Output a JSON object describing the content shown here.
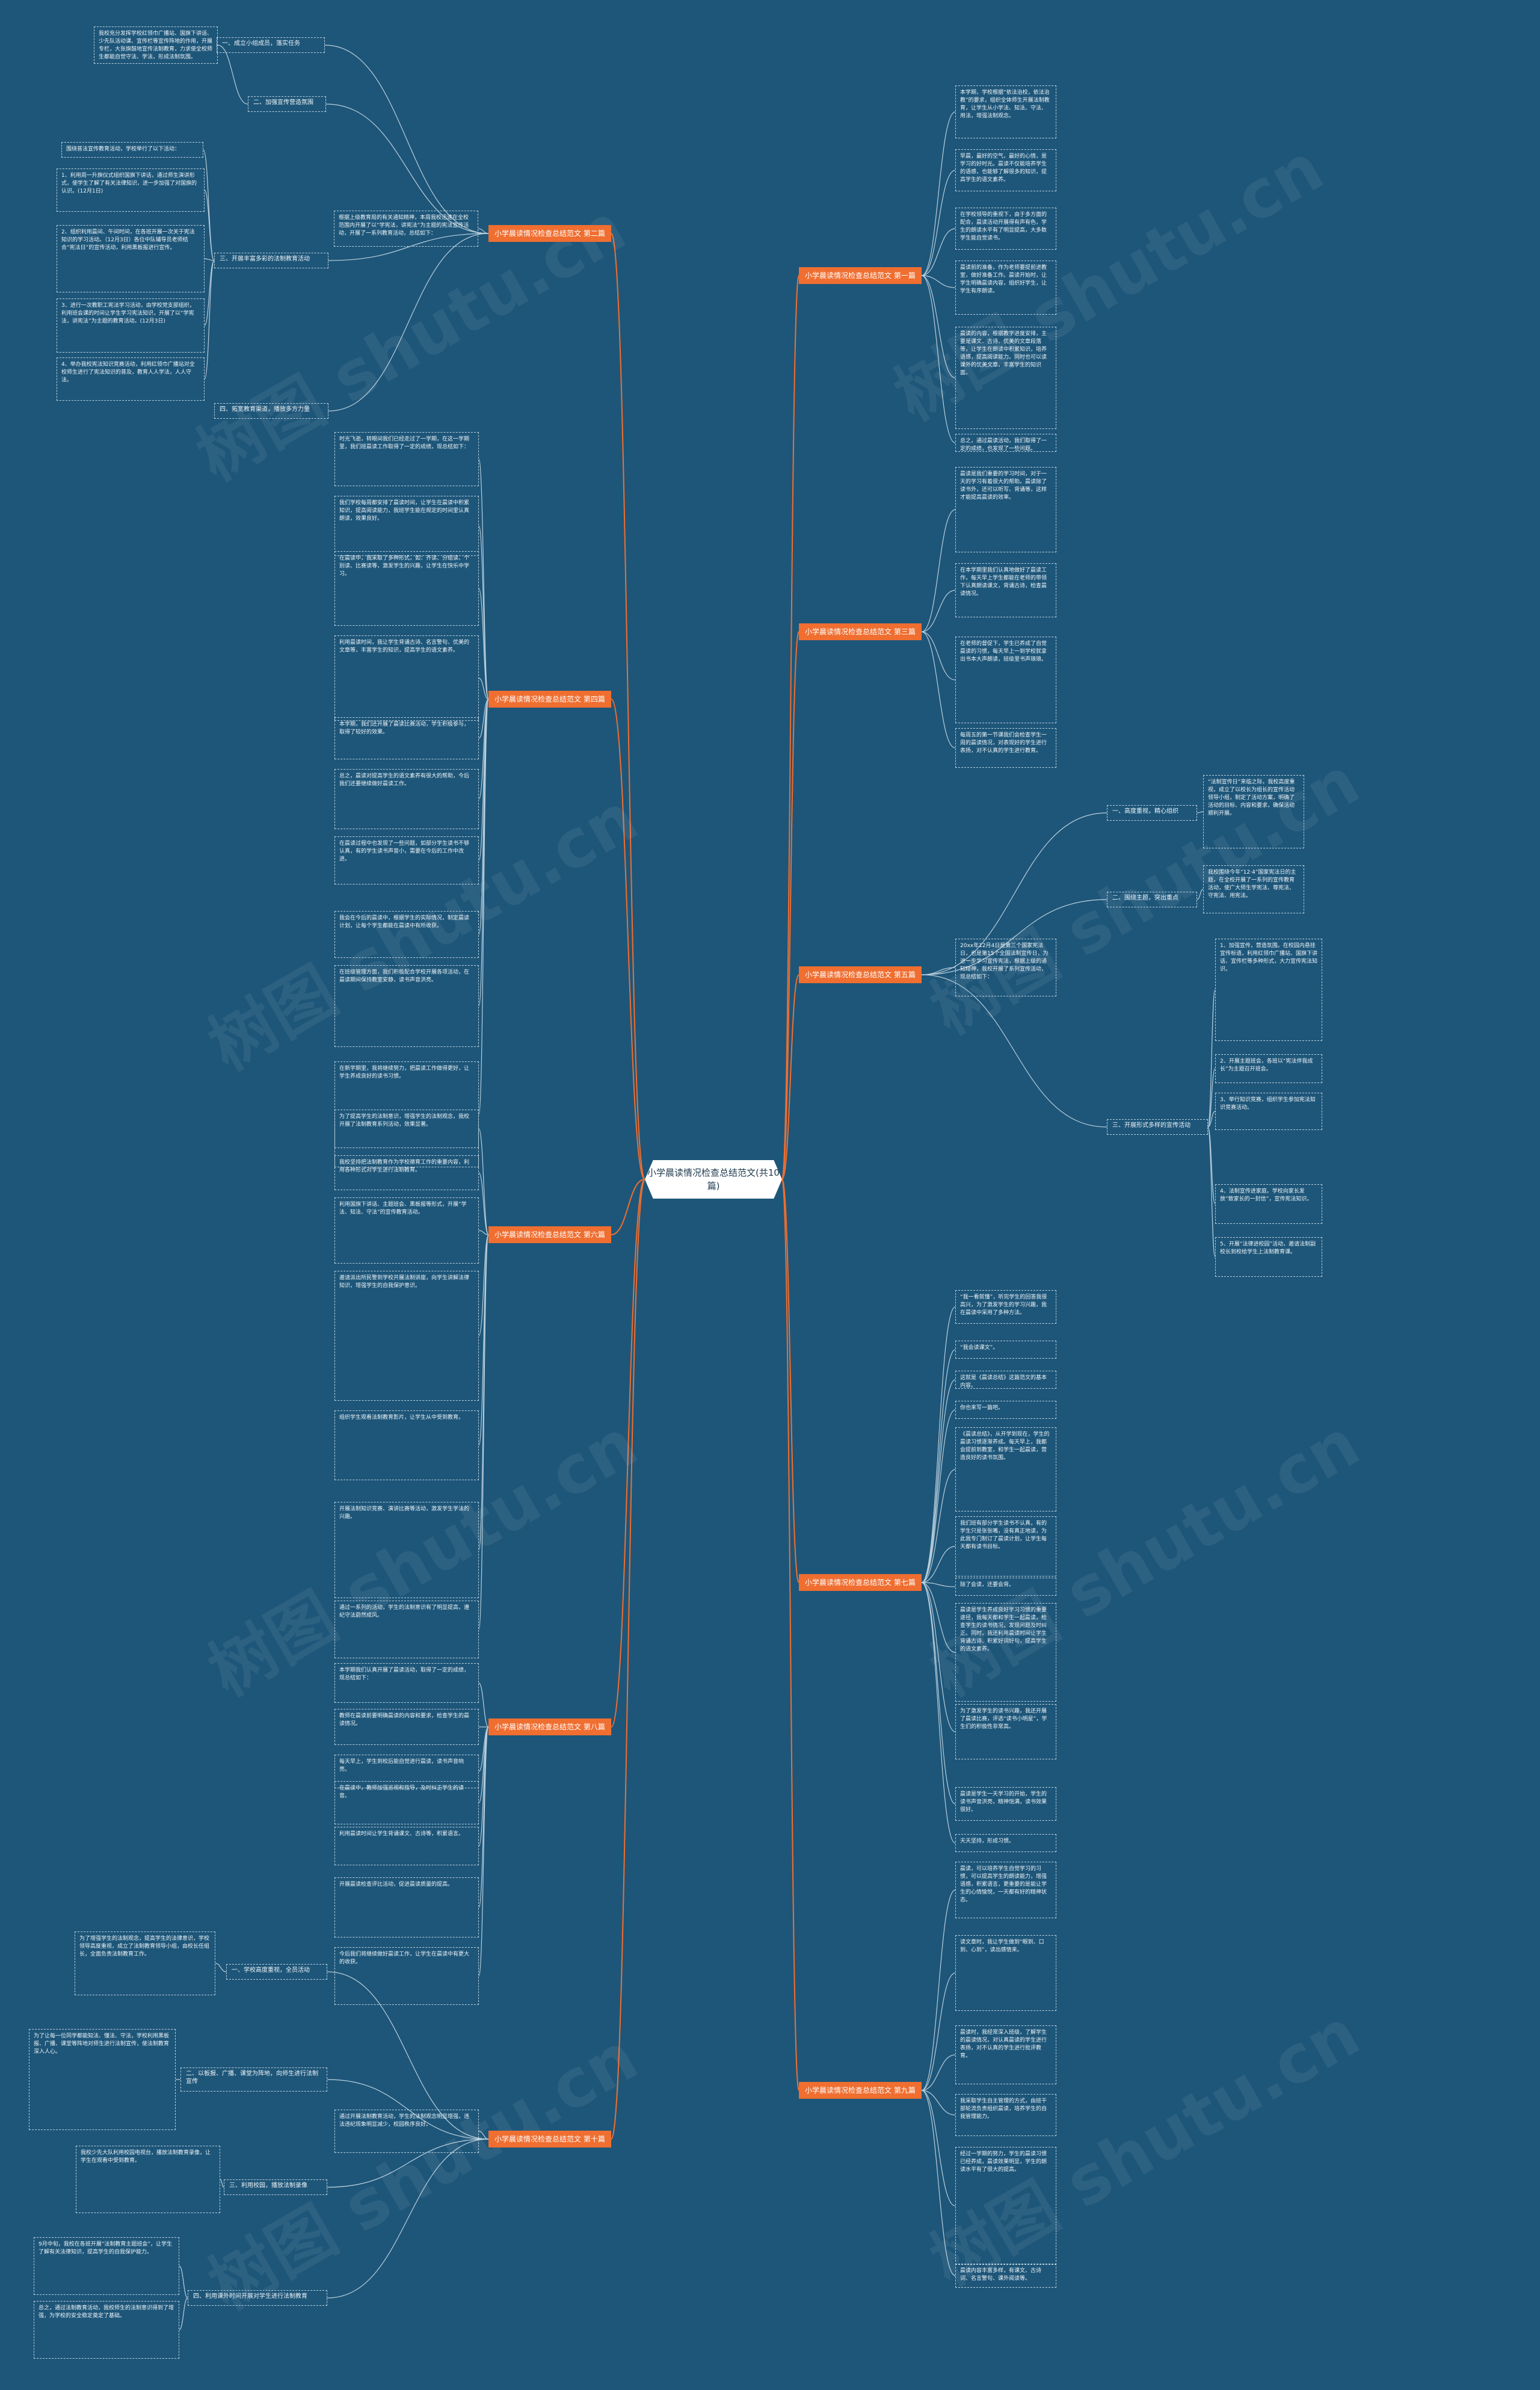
{
  "title": "小学晨读情况检查总结范文(共10篇)",
  "watermark": [
    "树图 shutu.cn",
    "树图 shutu.cn",
    "树图 shutu.cn",
    "树图 shutu.cn",
    "树图 shutu.cn",
    "树图 shutu.cn",
    "树图 shutu.cn",
    "树图 shutu.cn"
  ],
  "branches": {
    "b1": "小学晨读情况检查总结范文 第一篇",
    "b2": "小学晨读情况检查总结范文 第二篇",
    "b3": "小学晨读情况检查总结范文 第三篇",
    "b4": "小学晨读情况检查总结范文 第四篇",
    "b5": "小学晨读情况检查总结范文 第五篇",
    "b6": "小学晨读情况检查总结范文 第六篇",
    "b7": "小学晨读情况检查总结范文 第七篇",
    "b8": "小学晨读情况检查总结范文 第八篇",
    "b9": "小学晨读情况检查总结范文 第九篇",
    "b10": "小学晨读情况检查总结范文 第十篇"
  },
  "sub": {
    "s2a": "一、成立小组成员，落实任务",
    "s2b": "二、加强宣传营造氛围",
    "s2c": "三、开展丰富多彩的法制教育活动",
    "s2d": "四、拓宽教育渠道，播放多方力量",
    "s5a": "一、高度重视，精心组织",
    "s5b": "二、围绕主题，突出重点",
    "s5c": "三、开展形式多样的宣传活动",
    "s10a": "一、学校高度重视，全员活动",
    "s10b": "二、以板报、广播、课堂为阵地，向师生进行法制宣传",
    "s10c": "三、利用校园，播放法制录像",
    "s10d": "四、利用课外时间开展对学生进行法制教育"
  },
  "nodes": {
    "n1a": "本学期，学校根据“依法治校，依法治教”的要求，组织全体师生开展法制教育，让学生从小学法、知法、守法、用法，增强法制观念。",
    "n1b": "早晨，最好的空气，最好的心情，是学习的好时光。晨读不仅能培养学生的语感，也能够了解很多的知识，提高学生的语文素养。",
    "n1c": "在学校领导的重视下，由于多方面的配合，晨读活动开展得有声有色，学生的朗读水平有了明显提高，大多数学生能自觉读书。",
    "n1d": "晨读前的准备，作为老师要提前进教室，做好准备工作。晨读开始时，让学生明确晨读内容，组织好学生，让学生有序朗读。",
    "n1e": "晨读的内容，根据教学进度安排，主要是课文、古诗、优美的文章段落等，让学生在朗读中积累知识，培养语感，提高阅读能力。同时也可以读课外的优美文章，丰富学生的知识面。",
    "n1f": "总之，通过晨读活动，我们取得了一定的成绩，也发现了一些问题。",
    "n2a": "我校充分发挥学校红领巾广播站、国旗下讲话、少先队活动课、宣传栏等宣传阵地的作用，开展专栏，大张旗鼓地宣传法制教育，力求使全校师生都能自觉守法、学法，形成法制氛围。",
    "n2b": "围绕普法宣传教育活动，学校举行了以下活动：",
    "n2c": "1、利用周一升旗仪式组织国旗下讲话，通过师生演讲形式，使学生了解了有关法律知识，进一步加强了对国旗的认识。(12月1日)",
    "n2d": "2、组织利用晨间、午间时间，在各班开展一次关于宪法知识的学习活动。（12月3日）各位中队辅导员老师结合“宪法日”的宣传活动，利用黑板报进行宣传。",
    "n2e": "3、进行一次教职工宪法学习活动，由学校党支部组织，利用班会课的时间让学生学习宪法知识，开展了以“学宪法，讲宪法”为主题的教育活动。(12月3日)",
    "n2f": "4、举办我校宪法知识竞赛活动，利用红领巾广播站对全校师生进行了宪法知识的普及，教育人人学法，人人守法。",
    "n2g": "根据上级教育局的有关通知精神，本周我校迅速在全校范围内开展了以“学宪法，讲宪法”为主题的宪法宣传活动，开展了一系列教育活动，总结如下：",
    "n3a": "晨读是我们重要的学习时间，对于一天的学习有着很大的帮助。晨读除了读书外，还可以听写、背诵等，这样才能提高晨读的效率。",
    "n3b": "在本学期里我们认真地做好了晨读工作，每天早上学生都能在老师的带领下认真朗读课文，背诵古诗，检查晨读情况。",
    "n3c": "在老师的督促下，学生已养成了自觉晨读的习惯，每天早上一到学校就拿出书本大声朗读，班级里书声琅琅。",
    "n3d": "每周五的第一节课我们会检查学生一周的晨读情况，对表现好的学生进行表扬，对不认真的学生进行教育。",
    "n4a": "时光飞逝，转眼间我们已经走过了一学期，在这一学期里，我们班晨读工作取得了一定的成绩，现总结如下：",
    "n4b": "我们学校每周都安排了晨读时间，让学生在晨读中积累知识，提高阅读能力，我班学生能在规定的时间里认真朗读，效果良好。",
    "n4c": "在晨读中，我采取了多种形式，如：齐读、分组读、个别读、比赛读等，激发学生的兴趣，让学生在快乐中学习。",
    "n4d": "利用晨读时间，我让学生背诵古诗、名言警句、优美的文章等，丰富学生的知识，提高学生的语文素养。",
    "n4e": "本学期，我们还开展了晨读比赛活动，学生积极参与，取得了较好的效果。",
    "n4f": "总之，晨读对提高学生的语文素养有很大的帮助，今后我们还要继续做好晨读工作。",
    "n4g": "在晨读过程中也发现了一些问题，如部分学生读书不够认真，有的学生读书声音小，需要在今后的工作中改进。",
    "n4h": "我会在今后的晨读中，根据学生的实际情况，制定晨读计划，让每个学生都能在晨读中有所收获。",
    "n4i": "在班级管理方面，我们积极配合学校开展各项活动，在晨读期间保持教室安静，读书声音洪亮。",
    "n4j": "在新学期里，我将继续努力，把晨读工作做得更好，让学生养成良好的读书习惯。",
    "n5a": "“法制宣传日”来临之际，我校高度重视，成立了以校长为组长的宣传活动领导小组，制定了活动方案，明确了活动的目标、内容和要求，确保活动顺利开展。",
    "n5b": "我校围绕今年“12·4”国家宪法日的主题，在全校开展了一系列的宣传教育活动，使广大师生学宪法、尊宪法、守宪法、用宪法。",
    "n5c": "1、加强宣传，营造氛围。在校园内悬挂宣传标语，利用红领巾广播站、国旗下讲话、宣传栏等多种形式，大力宣传宪法知识。",
    "n5d": "2、开展主题班会，各班以“宪法伴我成长”为主题召开班会。",
    "n5e": "3、举行知识竞赛，组织学生参加宪法知识竞赛活动。",
    "n5f": "4、法制宣传进家庭。学校向家长发放“致家长的一封信”，宣传宪法知识。",
    "n5g": "5、开展“法律进校园”活动，邀请法制副校长到校给学生上法制教育课。",
    "n5h": "20xx年12月4日是第三个国家宪法日，也是第15个全国法制宣传日，为进一步学习宣传宪法，根据上级的通知精神，我校开展了系列宣传活动，现总结如下：",
    "n6a": "为了提高学生的法制意识，增强学生的法制观念，我校开展了法制教育系列活动，效果显著。",
    "n6b": "我校坚持把法制教育作为学校德育工作的重要内容，利用各种形式对学生进行法制教育。",
    "n6c": "利用国旗下讲话、主题班会、黑板报等形式，开展“学法、知法、守法”的宣传教育活动。",
    "n6d": "邀请派出所民警到学校开展法制讲座，向学生讲解法律知识，增强学生的自我保护意识。",
    "n6e": "组织学生观看法制教育影片，让学生从中受到教育。",
    "n6f": "开展法制知识竞赛、演讲比赛等活动，激发学生学法的兴趣。",
    "n6g": "通过一系列的活动，学生的法制意识有了明显提高，遵纪守法蔚然成风。",
    "n7a": "“我一看就懂”，听完学生的回答我很高兴，为了激发学生的学习兴趣，我在晨读中采用了多种方法。",
    "n7b": "“我会读课文”。",
    "n7c": "这就是《晨读总结》这篇范文的基本内容。",
    "n7d": "你也来写一篇吧。",
    "n7e": "《晨读总结》，从开学到现在，学生的晨读习惯逐渐养成。每天早上，我都会提前到教室，和学生一起晨读，营造良好的读书氛围。",
    "n7f": "我们班有部分学生读书不认真，有的学生只是张张嘴，没有真正地读，为此我专门制订了晨读计划，让学生每天都有读书目标。",
    "n7g": "除了会读，还要会背。",
    "n7h": "晨读是学生养成良好学习习惯的重要途径，我每天都和学生一起晨读，检查学生的读书情况，发现问题及时纠正。同时，我还利用晨读时间让学生背诵古诗、积累好词好句，提高学生的语文素养。",
    "n7i": "为了激发学生的读书兴趣，我还开展了晨读比赛，评选“读书小明星”，学生们的积极性非常高。",
    "n7j": "晨读是学生一天学习的开始，学生的读书声音洪亮，精神饱满，读书效果很好。",
    "n7k": "天天坚持，形成习惯。",
    "n8a": "本学期我们认真开展了晨读活动，取得了一定的成绩，现总结如下：",
    "n8b": "教师在晨读前要明确晨读的内容和要求，检查学生的晨读情况。",
    "n8c": "每天早上，学生到校后能自觉进行晨读，读书声音响亮。",
    "n8d": "在晨读中，教师加强巡视和指导，及时纠正学生的读音。",
    "n8e": "利用晨读时间让学生背诵课文、古诗等，积累语言。",
    "n8f": "开展晨读检查评比活动，促进晨读质量的提高。",
    "n8g": "今后我们将继续做好晨读工作，让学生在晨读中有更大的收获。",
    "n9a": "晨读，可以培养学生自觉学习的习惯，可以提高学生的朗读能力，增强语感，积累语言，更重要的是能让学生的心情愉悦，一天都有好的精神状态。",
    "n9b": "读文章时，我让学生做到“眼到、口到、心到”，读出感情来。",
    "n9c": "晨读时，我经常深入班级，了解学生的晨读情况，对认真晨读的学生进行表扬，对不认真的学生进行批评教育。",
    "n9d": "我采取学生自主管理的方式，由班干部轮流负责组织晨读，培养学生的自我管理能力。",
    "n9e": "经过一学期的努力，学生的晨读习惯已经养成，晨读效果明显，学生的朗读水平有了很大的提高。",
    "n9f": "晨读内容丰富多样，有课文、古诗词、名言警句、课外阅读等。",
    "n10a": "为了增强学生的法制观念，提高学生的法律意识，学校领导高度重视，成立了法制教育领导小组，由校长任组长，全面负责法制教育工作。",
    "n10b": "为了让每一位同学都能知法、懂法、守法，学校利用黑板报、广播、课堂等阵地对师生进行法制宣传，使法制教育深入人心。",
    "n10c": "我校少先大队利用校园电视台，播放法制教育录像，让学生在观看中受到教育。",
    "n10d": "9月中旬，我校在各班开展“法制教育主题班会”，让学生了解有关法律知识，提高学生的自我保护能力。",
    "n10e": "总之，通过法制教育活动，我校师生的法制意识得到了增强，为学校的安全稳定奠定了基础。",
    "n10f": "通过开展法制教育活动，学生的法制观念明显增强，违法违纪现象明显减少，校园秩序良好。"
  }
}
